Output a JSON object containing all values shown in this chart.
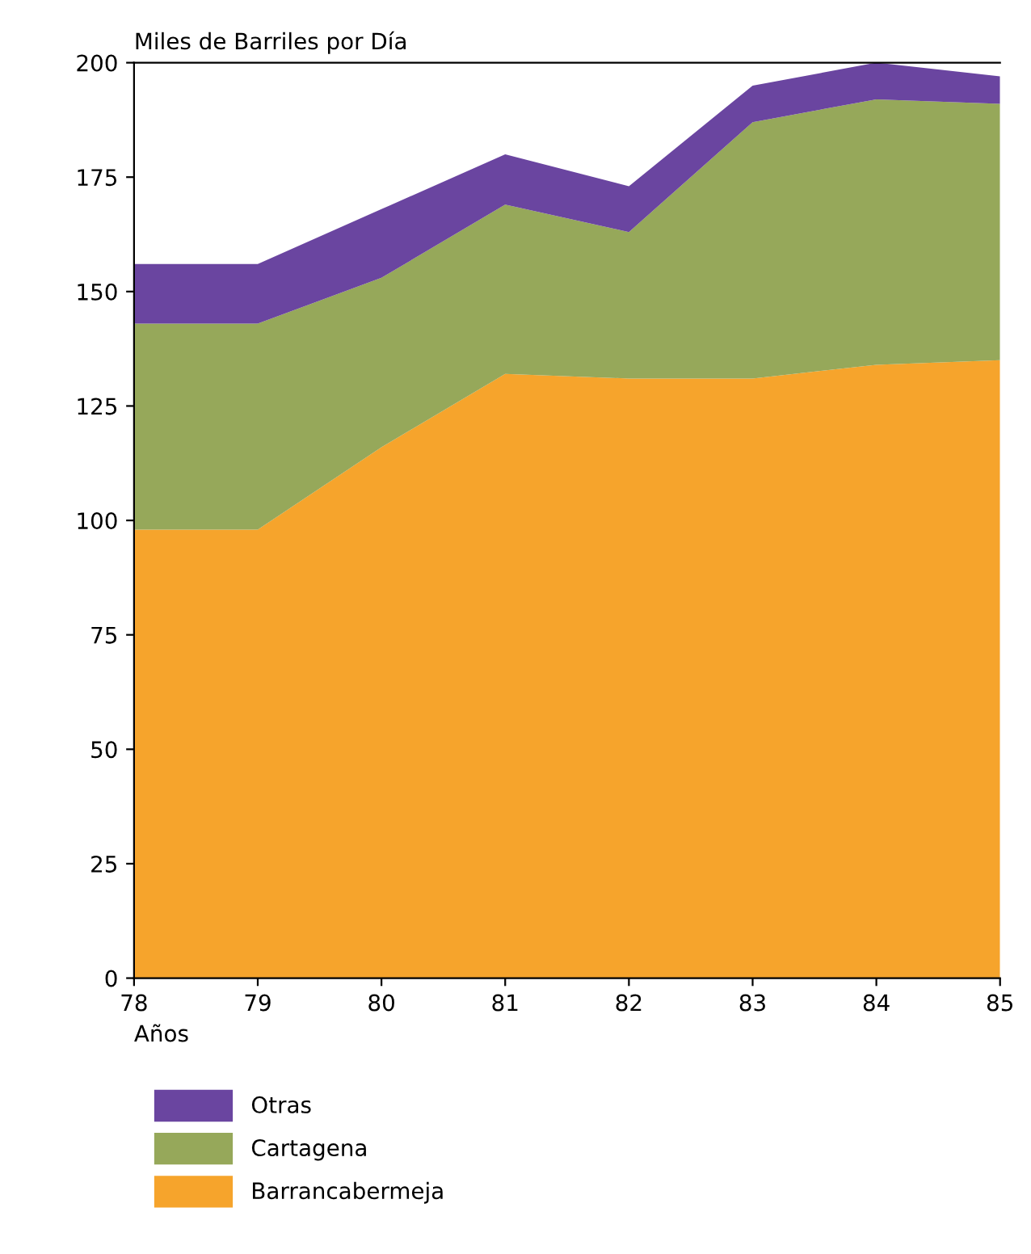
{
  "chart_data": {
    "type": "area",
    "stacked": true,
    "ylabel": "Miles de Barriles por Día",
    "xlabel": "Años",
    "x": [
      78,
      79,
      80,
      81,
      82,
      83,
      84,
      85
    ],
    "series": [
      {
        "name": "Barrancabermeja",
        "color": "#f6a42c",
        "values": [
          98,
          98,
          116,
          132,
          131,
          131,
          134,
          135
        ]
      },
      {
        "name": "Cartagena",
        "color": "#96a85a",
        "values": [
          45,
          45,
          37,
          37,
          32,
          56,
          58,
          56
        ]
      },
      {
        "name": "Otras",
        "color": "#6a45a0",
        "values": [
          13,
          13,
          15,
          11,
          10,
          8,
          8,
          6
        ]
      }
    ],
    "xlim": [
      78,
      85
    ],
    "xticks": [
      78,
      79,
      80,
      81,
      82,
      83,
      84,
      85
    ],
    "ylim": [
      0,
      200
    ],
    "yticks": [
      0,
      25,
      50,
      75,
      100,
      125,
      150,
      175,
      200
    ],
    "grid": false,
    "legend": "bottom left"
  }
}
